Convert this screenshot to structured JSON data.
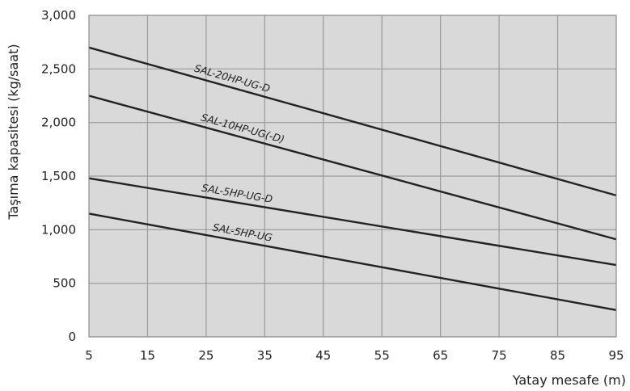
{
  "chart_data": {
    "type": "line",
    "title": "",
    "xlabel": "Yatay mesafe (m)",
    "ylabel": "Taşıma kapasitesi (kg/saat)",
    "xlim": [
      5,
      95
    ],
    "ylim": [
      0,
      3000
    ],
    "x_ticks": [
      5,
      15,
      25,
      35,
      45,
      55,
      65,
      75,
      85,
      95
    ],
    "x_tick_labels": [
      "5",
      "15",
      "25",
      "35",
      "45",
      "55",
      "65",
      "75",
      "85",
      "95"
    ],
    "y_ticks": [
      0,
      500,
      1000,
      1500,
      2000,
      2500,
      3000
    ],
    "y_tick_labels": [
      "0",
      "500",
      "1,000",
      "1,500",
      "2,000",
      "2,500",
      "3,000"
    ],
    "grid": true,
    "plot_background": "#d9d9d9",
    "grid_color": "#9a9a9a",
    "line_color": "#222222",
    "series": [
      {
        "name": "SAL-20HP-UG-D",
        "x": [
          5,
          95
        ],
        "values": [
          2700,
          1320
        ]
      },
      {
        "name": "SAL-10HP-UG(-D)",
        "x": [
          5,
          95
        ],
        "values": [
          2250,
          910
        ]
      },
      {
        "name": "SAL-5HP-UG-D",
        "x": [
          5,
          95
        ],
        "values": [
          1480,
          670
        ]
      },
      {
        "name": "SAL-5HP-UG",
        "x": [
          5,
          95
        ],
        "values": [
          1150,
          250
        ]
      }
    ]
  }
}
